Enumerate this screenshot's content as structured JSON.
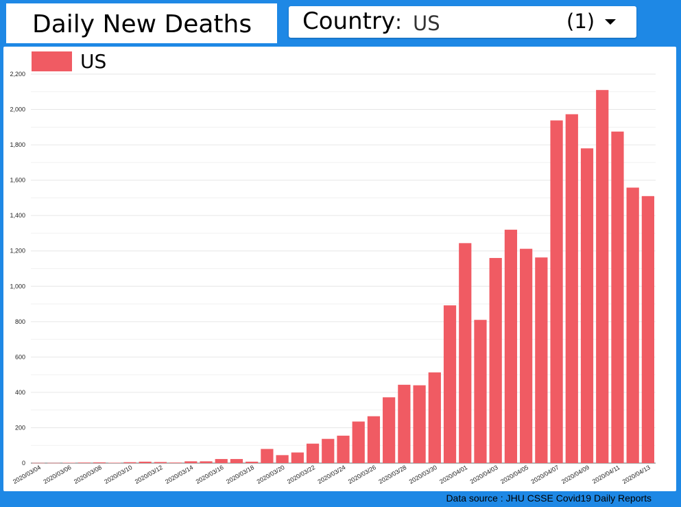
{
  "title": "Daily New Deaths",
  "filter": {
    "label": "Country",
    "separator": ": ",
    "value": "US",
    "count": "(1)",
    "icon": "chevron-down-icon"
  },
  "footer": {
    "source": "Data source : JHU CSSE Covid19 Daily Reports"
  },
  "colors": {
    "background": "#1e88e5",
    "series": "#f05b63",
    "grid": "#e6e6e6"
  },
  "chart_data": {
    "type": "bar",
    "title": "",
    "xlabel": "",
    "ylabel": "",
    "ylim": [
      0,
      2200
    ],
    "yticks": [
      0,
      200,
      400,
      600,
      800,
      1000,
      1200,
      1400,
      1600,
      1800,
      2000,
      2200
    ],
    "ytick_labels": [
      "0",
      "200",
      "400",
      "600",
      "800",
      "1,000",
      "1,200",
      "1,400",
      "1,600",
      "1,800",
      "2,000",
      "2,200"
    ],
    "grid": true,
    "legend": {
      "position": "top-left"
    },
    "categories": [
      "2020/03/04",
      "2020/03/05",
      "2020/03/06",
      "2020/03/07",
      "2020/03/08",
      "2020/03/09",
      "2020/03/10",
      "2020/03/11",
      "2020/03/12",
      "2020/03/13",
      "2020/03/14",
      "2020/03/15",
      "2020/03/16",
      "2020/03/17",
      "2020/03/18",
      "2020/03/19",
      "2020/03/20",
      "2020/03/21",
      "2020/03/22",
      "2020/03/23",
      "2020/03/24",
      "2020/03/25",
      "2020/03/26",
      "2020/03/27",
      "2020/03/28",
      "2020/03/29",
      "2020/03/30",
      "2020/03/31",
      "2020/04/01",
      "2020/04/02",
      "2020/04/03",
      "2020/04/04",
      "2020/04/05",
      "2020/04/06",
      "2020/04/07",
      "2020/04/08",
      "2020/04/09",
      "2020/04/10",
      "2020/04/11",
      "2020/04/12",
      "2020/04/13"
    ],
    "xtick_labels": [
      "2020/03/04",
      "2020/03/06",
      "2020/03/08",
      "2020/03/10",
      "2020/03/12",
      "2020/03/14",
      "2020/03/16",
      "2020/03/18",
      "2020/03/20",
      "2020/03/22",
      "2020/03/24",
      "2020/03/26",
      "2020/03/28",
      "2020/03/30",
      "2020/04/01",
      "2020/04/03",
      "2020/04/05",
      "2020/04/07",
      "2020/04/09",
      "2020/04/11",
      "2020/04/13"
    ],
    "series": [
      {
        "name": "US",
        "color": "#f05b63",
        "values": [
          1,
          1,
          2,
          3,
          4,
          2,
          5,
          8,
          6,
          3,
          10,
          10,
          23,
          23,
          8,
          80,
          45,
          60,
          110,
          137,
          155,
          235,
          265,
          372,
          443,
          440,
          513,
          892,
          1244,
          810,
          1160,
          1320,
          1212,
          1163,
          1938,
          1973,
          1780,
          2110,
          1875,
          1558,
          1510
        ]
      }
    ]
  }
}
